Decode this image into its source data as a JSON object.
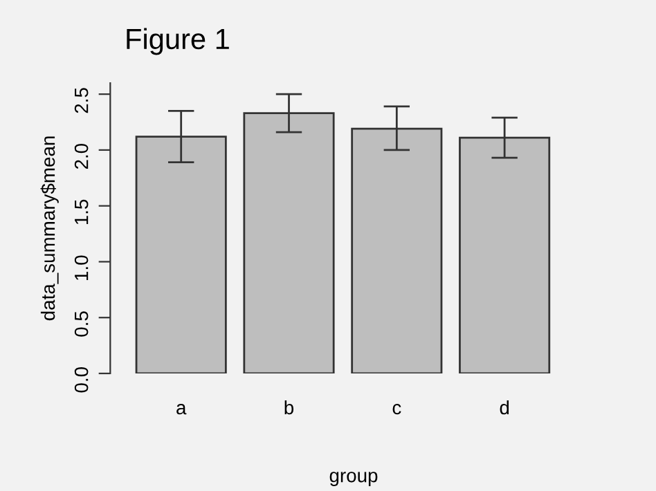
{
  "chart_data": {
    "type": "bar",
    "title": "Figure 1",
    "xlabel": "group",
    "ylabel": "data_summary$mean",
    "categories": [
      "a",
      "b",
      "c",
      "d"
    ],
    "values": [
      2.12,
      2.33,
      2.19,
      2.11
    ],
    "errors": [
      [
        1.89,
        2.35
      ],
      [
        2.16,
        2.5
      ],
      [
        2.0,
        2.39
      ],
      [
        1.93,
        2.29
      ]
    ],
    "color": "#bebebe",
    "ylim": [
      0,
      2.6
    ],
    "yticks": [
      {
        "value": 0,
        "label": "0.0"
      },
      {
        "value": 0.5,
        "label": "0.5"
      },
      {
        "value": 1,
        "label": "1.0"
      },
      {
        "value": 1.5,
        "label": "1.5"
      },
      {
        "value": 2,
        "label": "2.0"
      },
      {
        "value": 2.5,
        "label": "2.5"
      }
    ],
    "grid": false,
    "legend": false
  }
}
